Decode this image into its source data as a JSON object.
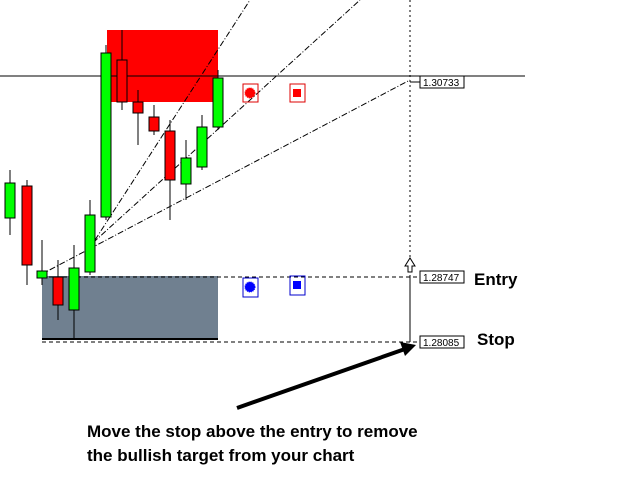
{
  "price_labels": [
    "1.30733",
    "1.28747",
    "1.28085"
  ],
  "levels": {
    "entry": "Entry",
    "stop": "Stop"
  },
  "annotation": [
    "Move the stop above the entry to remove",
    "the bullish target from your chart"
  ]
}
